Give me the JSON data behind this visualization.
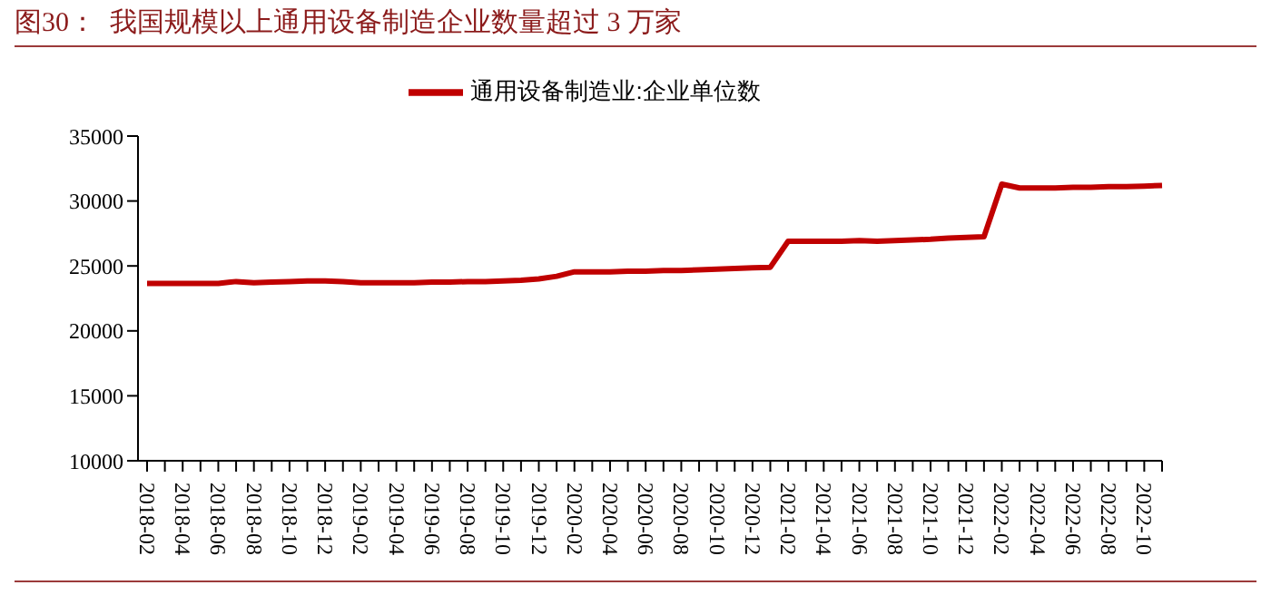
{
  "chart_data": {
    "type": "line",
    "title": "图30：  我国规模以上通用设备制造企业数量超过 3 万家",
    "categories": [
      "2018-02",
      null,
      "2018-04",
      null,
      "2018-06",
      null,
      "2018-08",
      null,
      "2018-10",
      null,
      "2018-12",
      null,
      "2019-02",
      null,
      "2019-04",
      null,
      "2019-06",
      null,
      "2019-08",
      null,
      "2019-10",
      null,
      "2019-12",
      null,
      "2020-02",
      null,
      "2020-04",
      null,
      "2020-06",
      null,
      "2020-08",
      null,
      "2020-10",
      null,
      "2020-12",
      null,
      "2021-02",
      null,
      "2021-04",
      null,
      "2021-06",
      null,
      "2021-08",
      null,
      "2021-10",
      null,
      "2021-12",
      null,
      "2022-02",
      null,
      "2022-04",
      null,
      "2022-06",
      null,
      "2022-08",
      null,
      "2022-10",
      null
    ],
    "series": [
      {
        "name": "通用设备制造业:企业单位数",
        "color": "#c00000",
        "values": [
          23650,
          23650,
          23650,
          23650,
          23650,
          23800,
          23700,
          23750,
          23800,
          23850,
          23850,
          23800,
          23700,
          23700,
          23700,
          23700,
          23750,
          23750,
          23800,
          23800,
          23850,
          23900,
          24000,
          24200,
          24550,
          24550,
          24550,
          24600,
          24600,
          24650,
          24650,
          24700,
          24750,
          24800,
          24850,
          24900,
          26900,
          26900,
          26900,
          26900,
          26950,
          26900,
          26950,
          27000,
          27050,
          27150,
          27200,
          27250,
          31300,
          31000,
          31000,
          31000,
          31050,
          31050,
          31100,
          31100,
          31150,
          31200
        ]
      }
    ],
    "ylim": [
      10000,
      35000
    ],
    "yticks": [
      10000,
      15000,
      20000,
      25000,
      30000,
      35000
    ],
    "grid": false,
    "legend": "top",
    "marker": "none",
    "line_style": "solid"
  }
}
